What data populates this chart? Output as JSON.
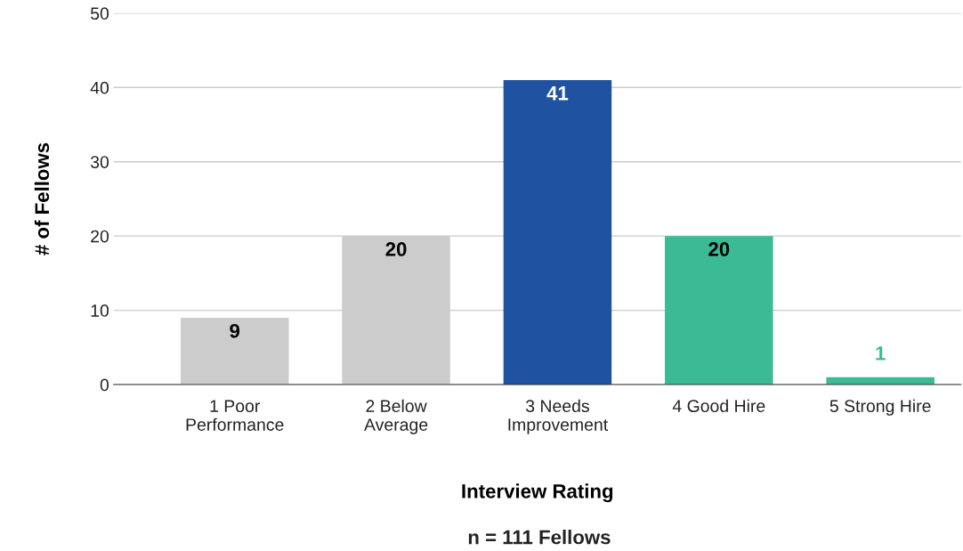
{
  "chart_data": {
    "type": "bar",
    "xlabel": "Interview Rating",
    "ylabel": "# of Fellows",
    "categories": [
      "1 Poor\nPerformance",
      "2 Below\nAverage",
      "3 Needs\nImprovement",
      "4 Good Hire",
      "5 Strong Hire"
    ],
    "values": [
      9,
      20,
      41,
      20,
      1
    ],
    "colors": [
      "#cccccc",
      "#cccccc",
      "#1f52a0",
      "#3cba96",
      "#3cba96"
    ],
    "ylim": [
      0,
      50
    ],
    "yticks": [
      0,
      10,
      20,
      30,
      40,
      50
    ],
    "grid": "y",
    "data_labels": true,
    "annotations": [
      "n = 111 Fellows"
    ]
  }
}
